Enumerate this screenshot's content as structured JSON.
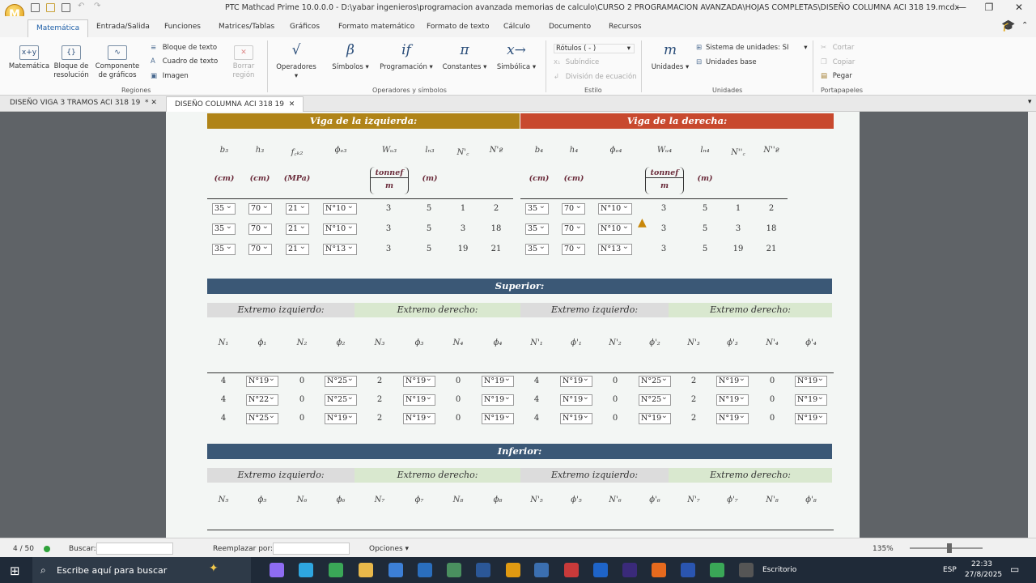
{
  "window": {
    "title": "PTC Mathcad Prime 10.0.0.0 - D:\\yabar ingenieros\\programacion avanzada memorias de calculo\\CURSO 2 PROGRAMACION AVANZADA\\HOJAS COMPLETAS\\DISEÑO COLUMNA ACI 318 19.mcdx",
    "app_letter": "M",
    "minimize": "—",
    "maximize": "❐",
    "close": "✕"
  },
  "ribbon_tabs": [
    "Matemática",
    "Entrada/Salida",
    "Funciones",
    "Matrices/Tablas",
    "Gráficos",
    "Formato matemático",
    "Formato de texto",
    "Cálculo",
    "Documento",
    "Recursos"
  ],
  "ribbon": {
    "regiones": {
      "math": "Matemática",
      "math_icon": "x+y",
      "solve_block": "Bloque de\nresolución",
      "graph": "Componente\nde gráficos",
      "text_block": "Bloque de texto",
      "text_box": "Cuadro de texto",
      "image": "Imagen",
      "delete_region": "Borrar\nregión",
      "group": "Regiones"
    },
    "operadores": {
      "operators": "Operadores",
      "operators_sym": "√",
      "symbols": "Símbolos",
      "symbols_sym": "β",
      "programming": "Programación",
      "programming_sym": "if",
      "constants": "Constantes",
      "constants_sym": "π",
      "symbolic": "Simbólica",
      "symbolic_sym": "x→",
      "group": "Operadores y símbolos"
    },
    "estilo": {
      "labels": "Rótulos  ( - )",
      "subindex": "Subíndice",
      "division": "División de ecuación",
      "group": "Estilo"
    },
    "unidades": {
      "units": "Unidades",
      "units_sym": "m",
      "system": "Sistema de unidades:  SI",
      "base": "Unidades base",
      "group": "Unidades"
    },
    "portapapeles": {
      "cut": "Cortar",
      "copy": "Copiar",
      "paste": "Pegar",
      "group": "Portapapeles"
    }
  },
  "doc_tabs": [
    {
      "label": "DISEÑO VIGA 3 TRAMOS ACI 318 19",
      "close": "*  ✕"
    },
    {
      "label": "DISEÑO COLUMNA ACI 318 19",
      "close": "✕"
    }
  ],
  "worksheet": {
    "left_beam": "Viga de la izquierda:",
    "right_beam": "Viga de la derecha:",
    "colors": {
      "left": "#b08418",
      "right": "#c8492e",
      "blue": "#3b5876",
      "grey": "#dcdcdc",
      "green": "#d9e8cf"
    },
    "left_vars": [
      "b₃",
      "h₃",
      "f꜀ₖ₂",
      "ϕₑ₃",
      "Wᵤ₃",
      "lₙ₃",
      "N'꜀",
      "N'ғ"
    ],
    "right_vars": [
      "b₄",
      "h₄",
      "ϕₑ₄",
      "Wᵤ₄",
      "lₙ₄",
      "N''꜀",
      "N''ғ"
    ],
    "left_units": [
      "(cm)",
      "(cm)",
      "(MPa)",
      "",
      "tonnef / m",
      "(m)"
    ],
    "right_units": [
      "(cm)",
      "(cm)",
      "tonnef / m",
      "(m)"
    ],
    "unit_num": "tonnef",
    "unit_den": "m",
    "left_rows": [
      [
        "35",
        "70",
        "21",
        "N°10",
        "3",
        "5",
        "1",
        "2"
      ],
      [
        "35",
        "70",
        "21",
        "N°10",
        "3",
        "5",
        "3",
        "18"
      ],
      [
        "35",
        "70",
        "21",
        "N°13",
        "3",
        "5",
        "19",
        "21"
      ]
    ],
    "right_rows": [
      [
        "35",
        "70",
        "N°10",
        "3",
        "5",
        "1",
        "2"
      ],
      [
        "35",
        "70",
        "N°10",
        "3",
        "5",
        "3",
        "18"
      ],
      [
        "35",
        "70",
        "N°13",
        "3",
        "5",
        "19",
        "21"
      ]
    ],
    "superior": "Superior:",
    "inferior": "Inferior:",
    "ext_left": "Extremo izquierdo:",
    "ext_right": "Extremo derecho:",
    "sup_vars": [
      "N₁",
      "ϕ₁",
      "N₂",
      "ϕ₂",
      "N₃",
      "ϕ₃",
      "N₄",
      "ϕ₄",
      "N'₁",
      "ϕ'₁",
      "N'₂",
      "ϕ'₂",
      "N'₃",
      "ϕ'₃",
      "N'₄",
      "ϕ'₄"
    ],
    "sup_rows": [
      [
        "4",
        "N°19",
        "0",
        "N°25",
        "2",
        "N°19",
        "0",
        "N°19",
        "4",
        "N°19",
        "0",
        "N°25",
        "2",
        "N°19",
        "0",
        "N°19"
      ],
      [
        "4",
        "N°22",
        "0",
        "N°25",
        "2",
        "N°19",
        "0",
        "N°19",
        "4",
        "N°19",
        "0",
        "N°25",
        "2",
        "N°19",
        "0",
        "N°19"
      ],
      [
        "4",
        "N°25",
        "0",
        "N°19",
        "2",
        "N°19",
        "0",
        "N°19",
        "4",
        "N°19",
        "0",
        "N°19",
        "2",
        "N°19",
        "0",
        "N°19"
      ]
    ],
    "inf_vars": [
      "N₅",
      "ϕ₅",
      "N₆",
      "ϕ₆",
      "N₇",
      "ϕ₇",
      "N₈",
      "ϕ₈",
      "N'₅",
      "ϕ'₅",
      "N'₆",
      "ϕ'₆",
      "N'₇",
      "ϕ'₇",
      "N'₈",
      "ϕ'₈"
    ]
  },
  "status": {
    "page": "4 / 50",
    "search_label": "Buscar:",
    "replace_label": "Reemplazar por:",
    "options": "Opciones",
    "zoom": "135%"
  },
  "taskbar": {
    "search_placeholder": "Escribe aquí para buscar",
    "desktop": "Escritorio",
    "lang": "ESP",
    "time": "22:33",
    "date": "27/8/2025"
  }
}
